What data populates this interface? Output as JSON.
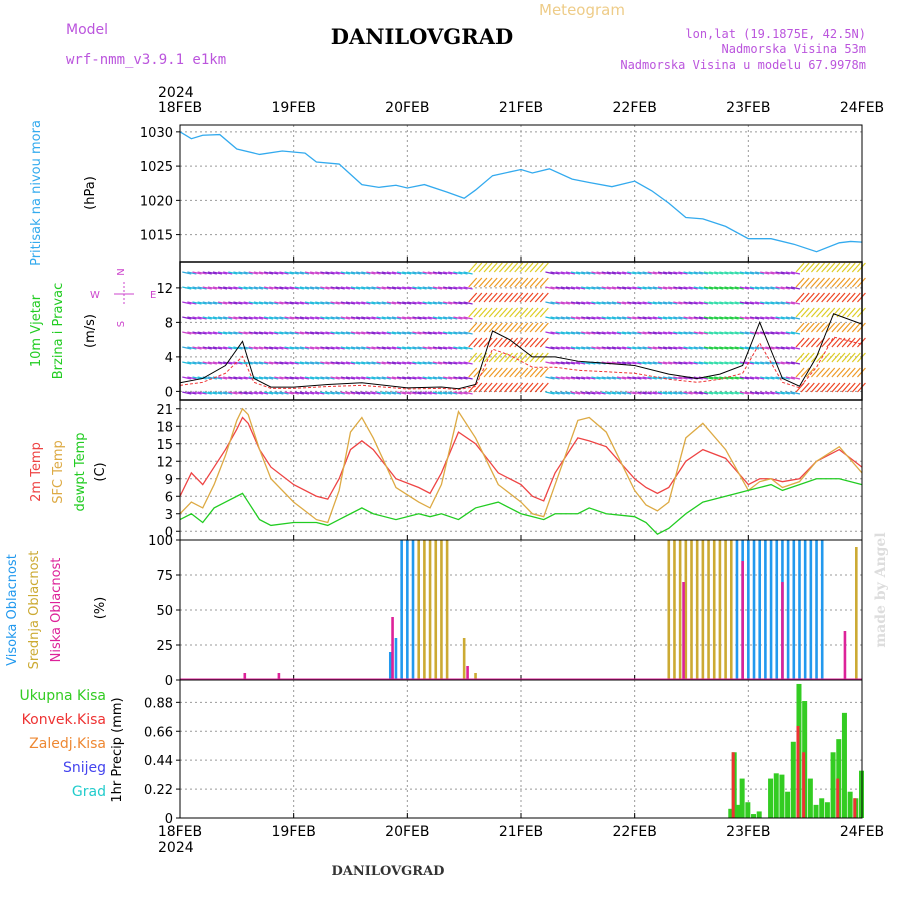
{
  "header": {
    "model_label": "Model",
    "model_name": "wrf-nmm_v3.9.1 e1km",
    "station": "DANILOVGRAD",
    "meteogram": "Meteogram",
    "coords": "lon,lat (19.1875E, 42.5N)",
    "elevation": "Nadmorska Visina 53m",
    "model_elevation": "Nadmorska Visina u modelu 67.9978m",
    "year": "2024",
    "credit": "made by Angel",
    "footer": "DANILOVGRAD"
  },
  "colors": {
    "pressure": "#33aaee",
    "temp2m": "#ee4444",
    "sfc": "#ddaa44",
    "dewpt": "#22cc22",
    "high_cloud": "#2299ee",
    "mid_cloud": "#ccaa33",
    "low_cloud": "#dd2299",
    "total_precip": "#33cc22",
    "convective": "#ee3333",
    "freezing": "#ee8833",
    "snow": "#4444ee",
    "grad": "#22cccc",
    "wind_wind": "#cc44cc"
  },
  "chart_data": [
    {
      "type": "line",
      "panel": "pressure",
      "title": "",
      "ylabel_main": "Pritisak na nivou mora",
      "ylabel_unit": "(hPa)",
      "x_ticks": [
        "18FEB",
        "19FEB",
        "20FEB",
        "21FEB",
        "22FEB",
        "23FEB",
        "24FEB"
      ],
      "y_ticks": [
        1015,
        1020,
        1025,
        1030
      ],
      "ylim": [
        1011,
        1031
      ],
      "series": [
        {
          "x": [
            0,
            0.1,
            0.2,
            0.35,
            0.5,
            0.7,
            0.9,
            1.1,
            1.2,
            1.4,
            1.6,
            1.75,
            1.9,
            2.0,
            2.15,
            2.35,
            2.5,
            2.6,
            2.75,
            3.0,
            3.1,
            3.25,
            3.45,
            3.6,
            3.8,
            4.0,
            4.15,
            4.3,
            4.45,
            4.6,
            4.8,
            5.0,
            5.2,
            5.4,
            5.6,
            5.8,
            5.9,
            6.0
          ],
          "y": [
            1030,
            1029,
            1029.5,
            1029.6,
            1027.5,
            1026.7,
            1027.2,
            1026.9,
            1025.6,
            1025.3,
            1022.3,
            1021.9,
            1022.2,
            1021.8,
            1022.3,
            1021.2,
            1020.3,
            1021.5,
            1023.6,
            1024.5,
            1024.0,
            1024.6,
            1023.1,
            1022.6,
            1022.0,
            1022.8,
            1021.4,
            1019.6,
            1017.5,
            1017.3,
            1016.2,
            1014.4,
            1014.4,
            1013.6,
            1012.5,
            1013.8,
            1014.0,
            1013.9
          ]
        }
      ]
    },
    {
      "type": "line",
      "panel": "wind",
      "ylabel_main": "10m Vjetar",
      "ylabel_sub": "Brzina i Pravac",
      "ylabel_unit": "(m/s)",
      "compass": {
        "n": "N",
        "s": "S",
        "w": "W",
        "e": "E"
      },
      "y_ticks": [
        0,
        4,
        8,
        12
      ],
      "ylim": [
        -1,
        15
      ],
      "series": [
        {
          "name": "speed",
          "x": [
            0,
            0.2,
            0.4,
            0.55,
            0.65,
            0.8,
            1.0,
            1.3,
            1.6,
            2.0,
            2.3,
            2.45,
            2.6,
            2.75,
            2.9,
            3.1,
            3.3,
            3.5,
            3.7,
            4.0,
            4.3,
            4.55,
            4.75,
            4.95,
            5.1,
            5.3,
            5.45,
            5.6,
            5.75,
            6.0
          ],
          "y": [
            1,
            1.5,
            3,
            5.8,
            1.5,
            0.5,
            0.5,
            0.8,
            1,
            0.4,
            0.5,
            0.3,
            0.8,
            7,
            6,
            4,
            4,
            3.5,
            3.3,
            3,
            2,
            1.5,
            2,
            3,
            8,
            1.5,
            0.6,
            4,
            9,
            7.8
          ]
        }
      ]
    },
    {
      "type": "line",
      "panel": "temperature",
      "ylabel_lines": [
        "2m Temp",
        "SFC Temp",
        "dewpt Temp"
      ],
      "ylabel_unit": "(C)",
      "y_ticks": [
        0,
        3,
        6,
        9,
        12,
        15,
        18,
        21
      ],
      "ylim": [
        -1.5,
        22.5
      ],
      "series": [
        {
          "name": "2m Temp",
          "x": [
            0,
            0.1,
            0.2,
            0.3,
            0.4,
            0.5,
            0.55,
            0.6,
            0.7,
            0.8,
            1.0,
            1.2,
            1.3,
            1.4,
            1.5,
            1.6,
            1.7,
            1.9,
            2.1,
            2.2,
            2.3,
            2.45,
            2.6,
            2.8,
            3.0,
            3.1,
            3.2,
            3.3,
            3.5,
            3.6,
            3.75,
            4.0,
            4.1,
            4.2,
            4.3,
            4.45,
            4.6,
            4.8,
            5.0,
            5.1,
            5.2,
            5.3,
            5.45,
            5.6,
            5.8,
            6.0
          ],
          "y": [
            6,
            10,
            8,
            11,
            14,
            17.5,
            19.5,
            18.5,
            14,
            11,
            8,
            6,
            5.5,
            9,
            14,
            15.5,
            14,
            9,
            7.5,
            6.5,
            10,
            17,
            15,
            10,
            8,
            6,
            5.2,
            10,
            16,
            15.5,
            14.5,
            9,
            7.5,
            6.5,
            7.5,
            12,
            14,
            12.5,
            8,
            9,
            9,
            8.5,
            9,
            12,
            14,
            11
          ]
        },
        {
          "name": "SFC Temp",
          "x": [
            0,
            0.1,
            0.2,
            0.3,
            0.4,
            0.5,
            0.55,
            0.6,
            0.7,
            0.8,
            1.0,
            1.2,
            1.3,
            1.4,
            1.5,
            1.6,
            1.7,
            1.9,
            2.1,
            2.2,
            2.3,
            2.45,
            2.6,
            2.8,
            3.0,
            3.1,
            3.2,
            3.3,
            3.5,
            3.6,
            3.75,
            4.0,
            4.1,
            4.2,
            4.3,
            4.45,
            4.6,
            4.8,
            5.0,
            5.1,
            5.2,
            5.3,
            5.45,
            5.6,
            5.8,
            6.0
          ],
          "y": [
            3,
            5,
            4,
            8,
            13,
            19,
            21,
            20,
            14,
            9,
            5,
            2,
            1.5,
            7,
            17,
            19.5,
            16,
            7.5,
            5,
            4,
            8,
            20.5,
            16,
            8,
            5,
            3,
            2.5,
            8,
            19,
            19.5,
            17,
            7,
            4.5,
            3.5,
            5,
            16,
            18.5,
            14,
            7,
            8.5,
            9,
            7.5,
            8.5,
            12,
            14.5,
            10
          ]
        },
        {
          "name": "dewpt Temp",
          "x": [
            0,
            0.1,
            0.2,
            0.3,
            0.4,
            0.5,
            0.55,
            0.6,
            0.7,
            0.8,
            1.0,
            1.2,
            1.3,
            1.4,
            1.5,
            1.6,
            1.7,
            1.9,
            2.1,
            2.2,
            2.3,
            2.45,
            2.6,
            2.8,
            3.0,
            3.1,
            3.2,
            3.3,
            3.5,
            3.6,
            3.75,
            4.0,
            4.1,
            4.2,
            4.3,
            4.45,
            4.6,
            4.8,
            5.0,
            5.1,
            5.2,
            5.3,
            5.45,
            5.6,
            5.8,
            6.0
          ],
          "y": [
            2,
            3,
            1.5,
            4,
            5,
            6,
            6.5,
            5,
            2,
            1,
            1.5,
            1.5,
            1,
            2,
            3,
            4,
            3,
            2,
            3,
            2.5,
            3,
            2,
            4,
            5,
            3,
            2.5,
            2,
            3,
            3,
            4,
            3,
            2.5,
            1.5,
            -0.5,
            0.5,
            3,
            5,
            6,
            7,
            7.5,
            8,
            7,
            8,
            9,
            9,
            8
          ]
        }
      ]
    },
    {
      "type": "bar",
      "panel": "cloud",
      "ylabel_lines": [
        "Visoka Oblacnost",
        "Srednja Oblacnost",
        "Niska Oblacnost"
      ],
      "ylabel_unit": "(%)",
      "y_ticks": [
        0,
        25,
        50,
        75,
        100
      ],
      "ylim": [
        0,
        100
      ],
      "series": [
        {
          "name": "Visoka Oblacnost",
          "x": [
            1.85,
            1.9,
            1.95,
            2.0,
            2.05,
            4.9,
            4.95,
            5.0,
            5.05,
            5.1,
            5.15,
            5.2,
            5.25,
            5.3,
            5.35,
            5.4,
            5.45,
            5.5,
            5.55,
            5.6,
            5.65
          ],
          "values": [
            20,
            30,
            100,
            100,
            100,
            100,
            100,
            100,
            100,
            100,
            100,
            100,
            100,
            100,
            100,
            100,
            100,
            100,
            100,
            100,
            100
          ]
        },
        {
          "name": "Srednja Oblacnost",
          "x": [
            2.1,
            2.15,
            2.2,
            2.25,
            2.3,
            2.35,
            2.5,
            2.6,
            4.3,
            4.35,
            4.4,
            4.45,
            4.5,
            4.55,
            4.6,
            4.65,
            4.7,
            4.75,
            4.8,
            4.85,
            5.95
          ],
          "values": [
            100,
            100,
            100,
            100,
            100,
            100,
            30,
            5,
            100,
            100,
            100,
            100,
            100,
            100,
            100,
            100,
            100,
            100,
            100,
            100,
            95
          ]
        },
        {
          "name": "Niska Oblacnost",
          "x": [
            0.57,
            0.87,
            1.87,
            2.53,
            4.43,
            4.95,
            5.3,
            5.85
          ],
          "values": [
            5,
            5,
            45,
            10,
            70,
            85,
            70,
            35
          ]
        }
      ]
    },
    {
      "type": "bar",
      "panel": "precip",
      "ylabel_lines": [
        "Ukupna Kisa",
        "Konvek.Kisa",
        "Zaledj.Kisa",
        "Snijeg",
        "Grad"
      ],
      "ylabel_unit": "1hr Precip (mm)",
      "y_ticks": [
        0,
        0.22,
        0.44,
        0.66,
        0.88
      ],
      "ylim": [
        0,
        1.05
      ],
      "series": [
        {
          "name": "Ukupna Kisa",
          "x": [
            4.85,
            4.88,
            4.91,
            4.95,
            5.0,
            5.05,
            5.1,
            5.2,
            5.25,
            5.3,
            5.35,
            5.4,
            5.45,
            5.5,
            5.55,
            5.6,
            5.65,
            5.7,
            5.75,
            5.8,
            5.85,
            5.9,
            5.95,
            6.0
          ],
          "values": [
            0.07,
            0.5,
            0.1,
            0.3,
            0.12,
            0.03,
            0.05,
            0.3,
            0.34,
            0.33,
            0.2,
            0.58,
            1.02,
            0.89,
            0.3,
            0.1,
            0.15,
            0.12,
            0.5,
            0.6,
            0.8,
            0.2,
            0.15,
            0.36
          ]
        },
        {
          "name": "Konvek.Kisa",
          "x": [
            4.88,
            5.45,
            5.5,
            5.8,
            5.95
          ],
          "values": [
            0.5,
            0.7,
            0.5,
            0.3,
            0.15
          ]
        }
      ]
    }
  ]
}
